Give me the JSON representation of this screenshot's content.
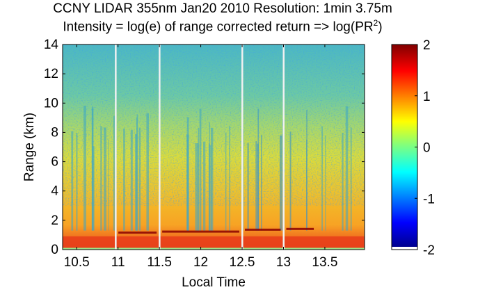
{
  "chart_data": {
    "type": "heatmap",
    "title": "CCNY LIDAR 355nm Jan20 2010 Resolution: 1min 3.75m",
    "subtitle": {
      "prefix": "Intensity = log(e) of range corrected return => log(PR",
      "superscript": "2",
      "suffix": ")"
    },
    "xlabel": "Local Time",
    "ylabel": "Range (km)",
    "xlim": [
      10.33,
      13.98
    ],
    "ylim": [
      0,
      14
    ],
    "xticks": [
      10.5,
      11,
      11.5,
      12,
      12.5,
      13,
      13.5
    ],
    "xtick_labels": [
      "10.5",
      "11",
      "11.5",
      "12",
      "12.5",
      "13",
      "13.5"
    ],
    "yticks": [
      0,
      2,
      4,
      6,
      8,
      10,
      12,
      14
    ],
    "ytick_labels": [
      "0",
      "2",
      "4",
      "6",
      "8",
      "10",
      "12",
      "14"
    ],
    "colorbar": {
      "range": [
        -2,
        2
      ],
      "ticks": [
        2,
        1,
        0,
        -1,
        -2
      ],
      "tick_labels": [
        "2",
        "1",
        "0",
        "-1",
        "-2"
      ],
      "colormap": "jet"
    },
    "data_gaps_local_time": [
      10.97,
      11.5,
      12.5,
      13.0
    ],
    "cloud_base_layer": [
      {
        "x0": 10.97,
        "x1": 11.5,
        "height_km": 1.15
      },
      {
        "x0": 11.5,
        "x1": 12.5,
        "height_km": 1.22
      },
      {
        "x0": 12.5,
        "x1": 13.0,
        "height_km": 1.35
      },
      {
        "x0": 13.0,
        "x1": 13.4,
        "height_km": 1.4
      }
    ],
    "boundary_layer_height_km": 1.0,
    "colors": {
      "ground_layer": "#e8401a",
      "boundary_layer": "#f6a020",
      "mid_level": "#e6e02a",
      "upper_noise": "#3cbfc8",
      "cloud_base": "#8a0000",
      "gap_line": "#f0f0f0"
    }
  }
}
